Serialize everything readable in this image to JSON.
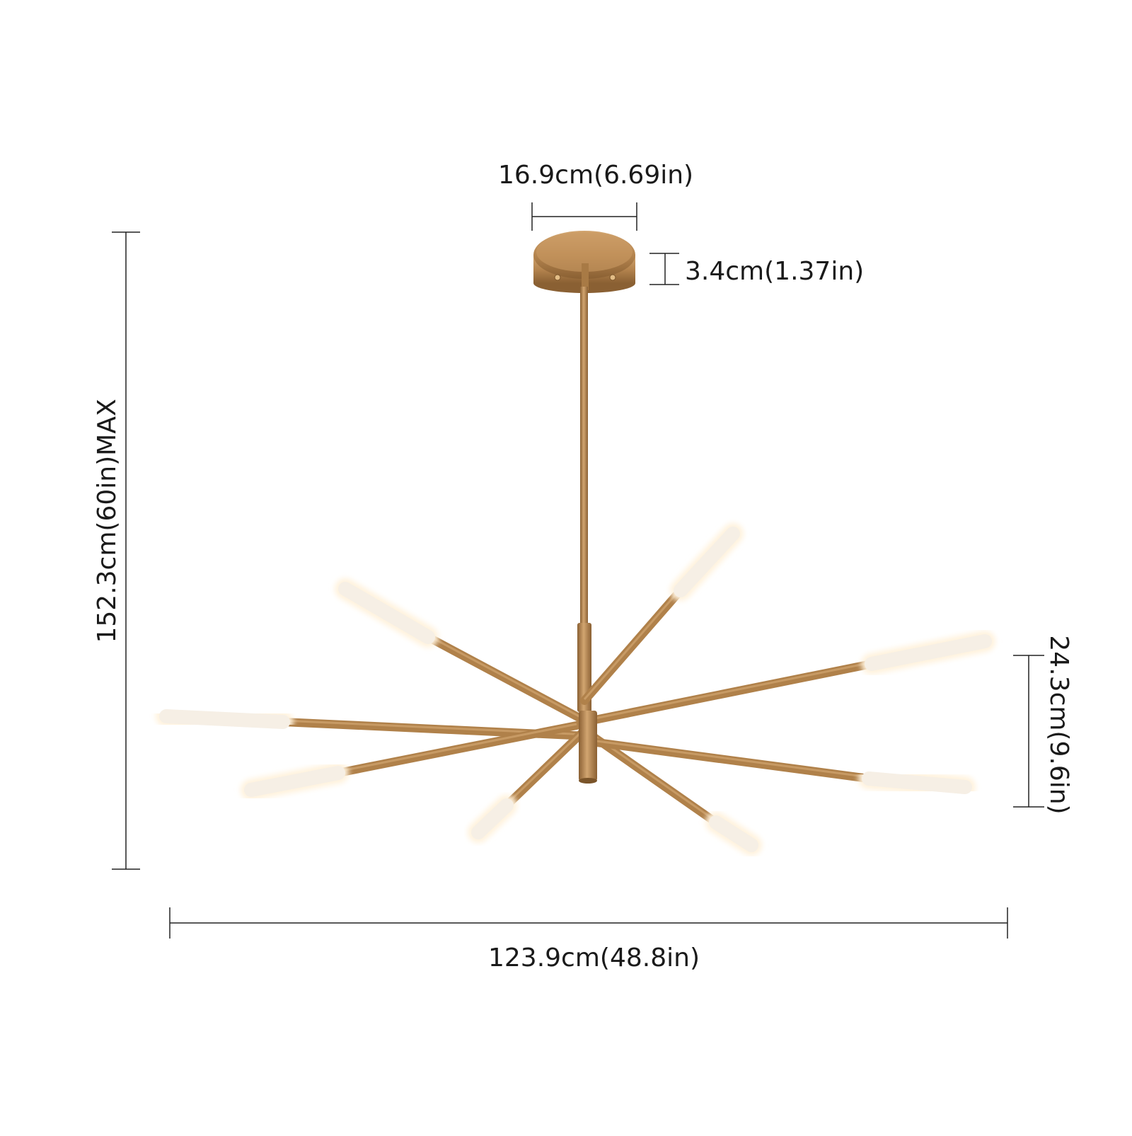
{
  "dimensions": {
    "canopy_width": "16.9cm(6.69in)",
    "canopy_height": "3.4cm(1.37in)",
    "overall_height": "152.3cm(60in)MAX",
    "arm_spread_height": "24.3cm(9.6in)",
    "overall_width": "123.9cm(48.8in)"
  },
  "colors": {
    "brass": "#b0814a",
    "brass_dark": "#8a6033",
    "brass_light": "#d2a570",
    "bulb": "#fbf6ee",
    "line": "#222222"
  },
  "fixture": {
    "type": "sputnik-chandelier",
    "arm_count": 8,
    "bulb_style": "frosted-tube"
  }
}
